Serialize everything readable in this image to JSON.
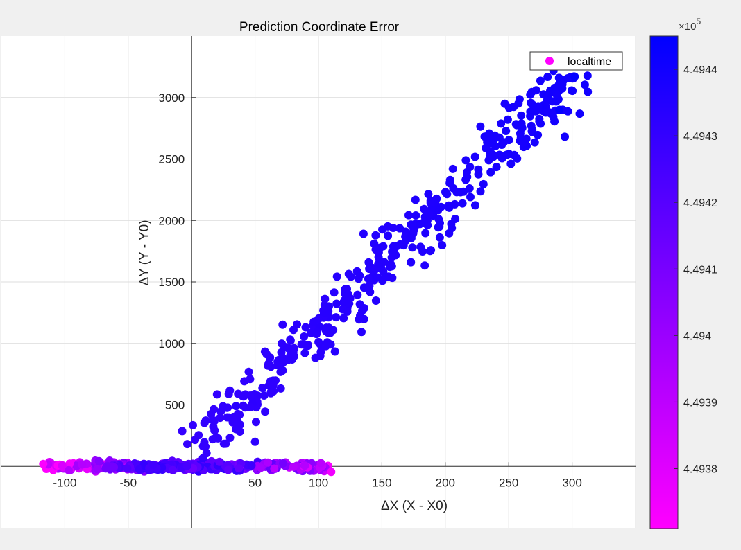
{
  "figure": {
    "background": "#f0f0f0",
    "axes_background": "#ffffff"
  },
  "chart_data": {
    "type": "scatter",
    "title": "Prediction Coordinate Error",
    "xlabel": "ΔX (X - X0)",
    "ylabel": "ΔY (Y - Y0)",
    "xlim": [
      -150,
      350
    ],
    "ylim": [
      -500,
      3500
    ],
    "xticks": [
      -100,
      -50,
      50,
      100,
      150,
      200,
      250,
      300
    ],
    "xtick_labels": [
      "-100",
      "-50",
      "50",
      "100",
      "150",
      "200",
      "250",
      "300"
    ],
    "yticks": [
      500,
      1000,
      1500,
      2000,
      2500,
      3000
    ],
    "ytick_labels": [
      "500",
      "1000",
      "1500",
      "2000",
      "2500",
      "3000"
    ],
    "axis_origin": [
      0,
      0
    ],
    "grid": true,
    "legend": {
      "entries": [
        "localtime"
      ],
      "location": "top-right",
      "marker_color": "#ff00ff"
    },
    "colorbar": {
      "exponent_label": "×10",
      "exponent": "5",
      "range": [
        4.49371,
        4.49445
      ],
      "ticks": [
        4.4938,
        4.4939,
        4.494,
        4.4941,
        4.4942,
        4.4943,
        4.4944
      ],
      "tick_labels": [
        "4.4938",
        "4.4939",
        "4.494",
        "4.4941",
        "4.4942",
        "4.4943",
        "4.4944"
      ],
      "colormap": [
        "#ff00ff",
        "#0000ff"
      ]
    },
    "series": [
      {
        "clusters": [
          {
            "shape": "band",
            "x_range": [
              -115,
              110
            ],
            "y_center": 0,
            "y_spread": 35,
            "n": 320,
            "color_range": [
              4.4937,
              4.4943
            ]
          },
          {
            "shape": "band",
            "x_range": [
              -70,
              5
            ],
            "y_center": -5,
            "y_spread": 28,
            "n": 120,
            "color_range": [
              4.4941,
              4.4943
            ]
          },
          {
            "shape": "line",
            "x_start": 5,
            "y_start": 150,
            "x_end": 300,
            "y_end": 3180,
            "n": 420,
            "x_noise": 8,
            "y_noise": 110,
            "color_range": [
              4.4943,
              4.4944
            ]
          }
        ]
      }
    ],
    "highlighted_points": [
      {
        "x": -117,
        "y": 20,
        "value": 4.49372
      },
      {
        "x": 110,
        "y": -45,
        "value": 4.49375
      },
      {
        "x": 50,
        "y": 200,
        "value": 4.49432
      },
      {
        "x": 35,
        "y": 490,
        "value": 4.49433
      },
      {
        "x": 302,
        "y": 3170,
        "value": 4.49444
      },
      {
        "x": 290,
        "y": 2900,
        "value": 4.49444
      }
    ]
  }
}
